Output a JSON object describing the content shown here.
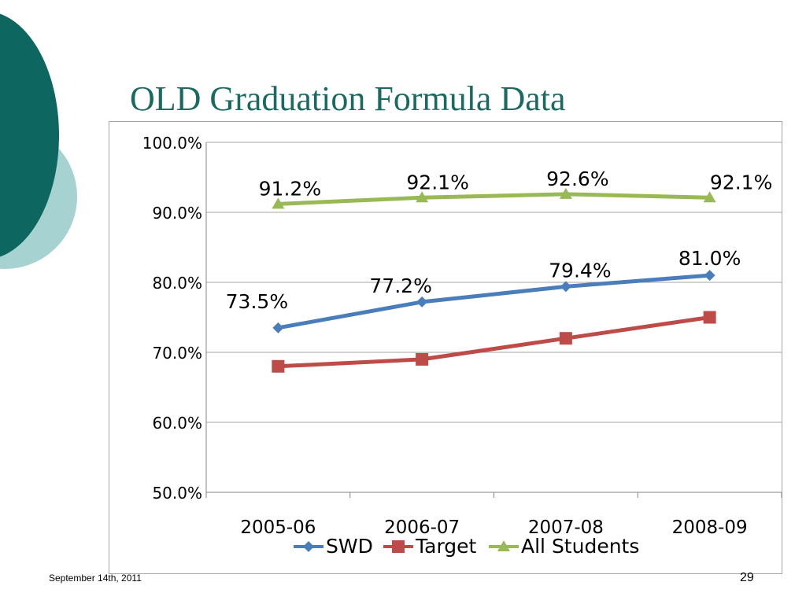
{
  "slide": {
    "title": "OLD Graduation Formula Data",
    "footer_date": "September 14th, 2011",
    "page_number": "29"
  },
  "colors": {
    "title": "#1b6a62",
    "deco_dark": "#0e6660",
    "deco_light": "#a6d3d2",
    "SWD": "#4a7ebb",
    "Target": "#be4b48",
    "All Students": "#98b954"
  },
  "chart_data": {
    "type": "line",
    "categories": [
      "2005-06",
      "2006-07",
      "2007-08",
      "2008-09"
    ],
    "ylim": [
      50,
      100
    ],
    "yticks": [
      50,
      60,
      70,
      80,
      90,
      100
    ],
    "ytick_labels": [
      "50.0%",
      "60.0%",
      "70.0%",
      "80.0%",
      "90.0%",
      "100.0%"
    ],
    "grid": true,
    "legend_position": "bottom",
    "series": [
      {
        "name": "SWD",
        "marker": "diamond",
        "values": [
          73.5,
          77.2,
          79.4,
          81.0
        ],
        "data_labels": [
          "73.5%",
          "77.2%",
          "79.4%",
          "81.0%"
        ]
      },
      {
        "name": "Target",
        "marker": "square",
        "values": [
          68,
          69,
          72,
          75
        ],
        "data_labels": []
      },
      {
        "name": "All Students",
        "marker": "triangle",
        "values": [
          91.2,
          92.1,
          92.6,
          92.1
        ],
        "data_labels": [
          "91.2%",
          "92.1%",
          "92.6%",
          "92.1%"
        ]
      }
    ]
  }
}
